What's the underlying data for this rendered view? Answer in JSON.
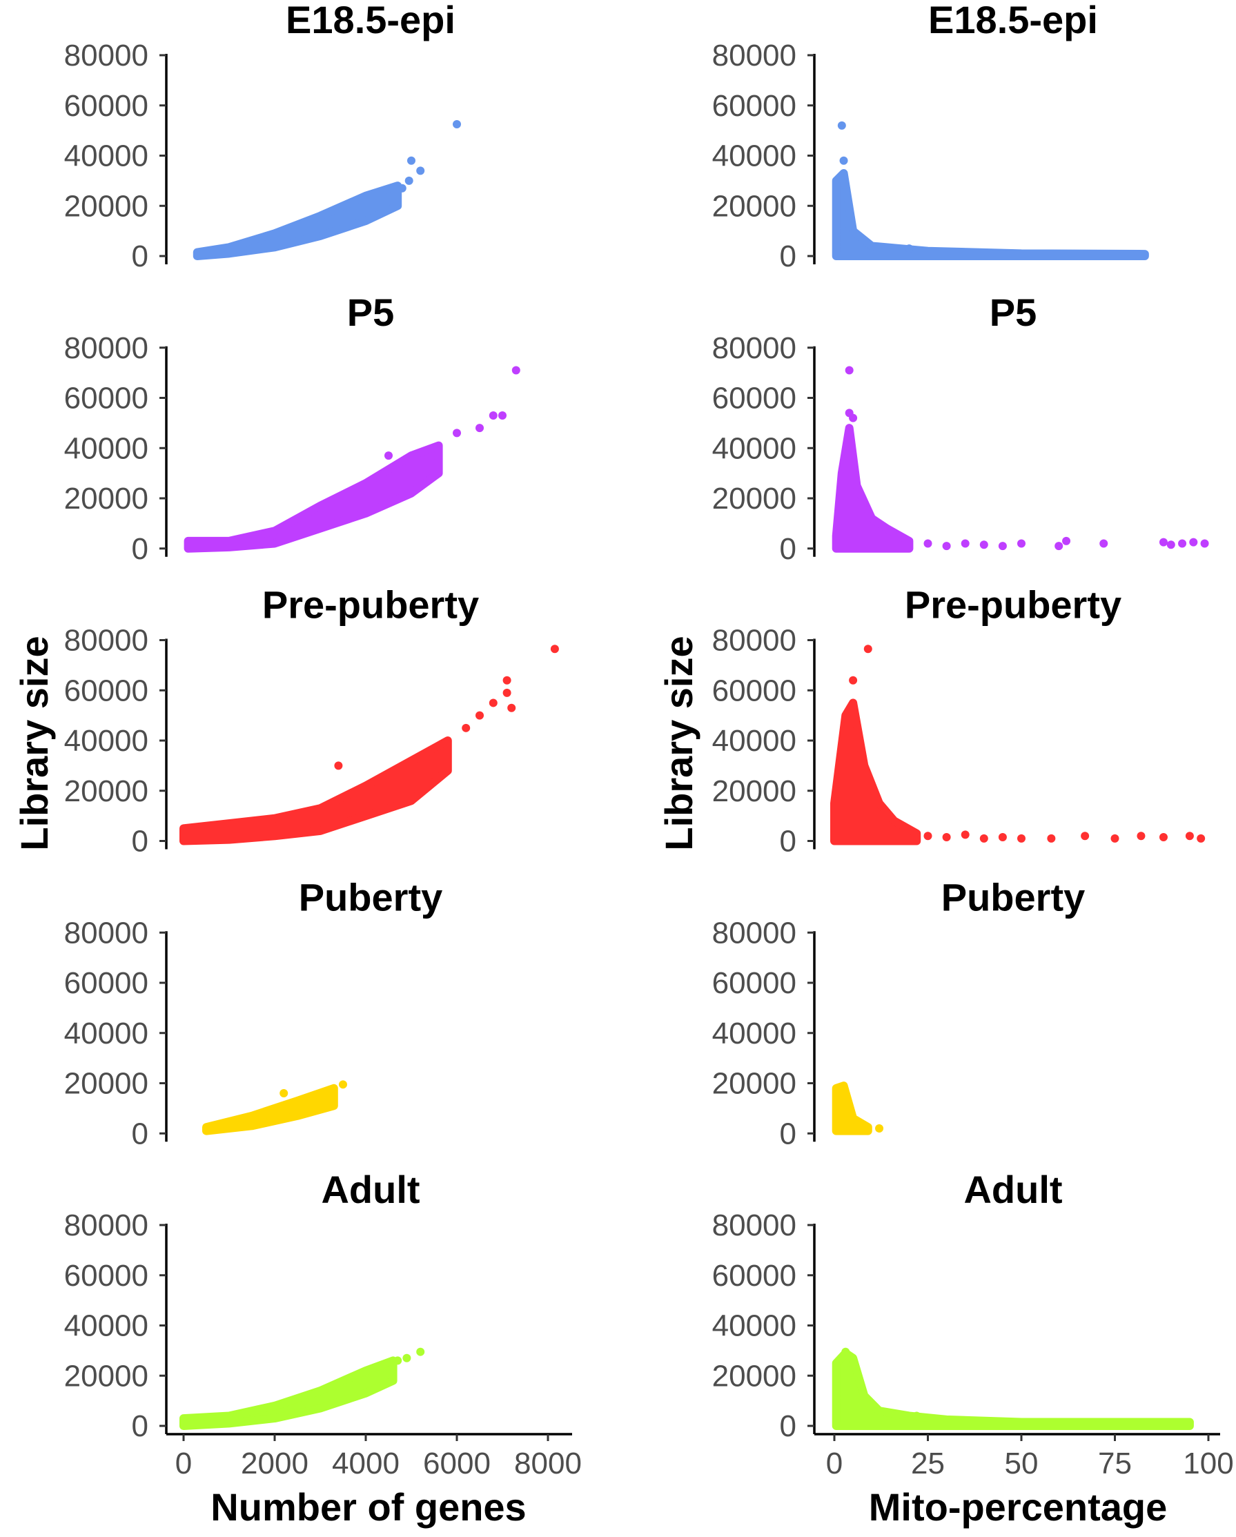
{
  "figure": {
    "xlabel_left": "Number of genes",
    "xlabel_right": "Mito-percentage",
    "ylabel_left": "Library size",
    "ylabel_right": "Library size"
  },
  "chart_data": [
    {
      "type": "scatter",
      "title": "E18.5-epi",
      "x_variable": "Number of genes",
      "color": "#6495ED",
      "xlim": [
        -380,
        8530
      ],
      "ylim": [
        0,
        80000
      ],
      "x_ticks": [
        "0",
        "2000",
        "4000",
        "6000",
        "8000"
      ],
      "y_ticks": [
        "0",
        "20000",
        "40000",
        "60000",
        "80000"
      ],
      "dense_region": [
        [
          300,
          0,
          1500
        ],
        [
          1000,
          1000,
          3500
        ],
        [
          2000,
          3500,
          9000
        ],
        [
          3000,
          8000,
          16000
        ],
        [
          4000,
          14000,
          24000
        ],
        [
          4700,
          20000,
          28000
        ]
      ],
      "points": [
        [
          4950,
          30000
        ],
        [
          5000,
          38000
        ],
        [
          5200,
          34000
        ],
        [
          4800,
          27000
        ],
        [
          6000,
          52500
        ]
      ]
    },
    {
      "type": "scatter",
      "title": "E18.5-epi",
      "x_variable": "Mito-percentage",
      "color": "#6495ED",
      "xlim": [
        -5.35,
        103.1
      ],
      "ylim": [
        0,
        80000
      ],
      "x_ticks": [
        "0",
        "25",
        "50",
        "75",
        "100"
      ],
      "y_ticks": [
        "0",
        "20000",
        "40000",
        "60000",
        "80000"
      ],
      "dense_region": [
        [
          0.5,
          0,
          30000
        ],
        [
          2.5,
          0,
          33000
        ],
        [
          5,
          0,
          10000
        ],
        [
          10,
          0,
          4000
        ],
        [
          25,
          0,
          2000
        ],
        [
          50,
          0,
          1000
        ],
        [
          83,
          0,
          800
        ]
      ],
      "points": [
        [
          2,
          52000
        ],
        [
          2.5,
          38000
        ],
        [
          4,
          12000
        ],
        [
          20,
          3000
        ]
      ]
    },
    {
      "type": "scatter",
      "title": "P5",
      "x_variable": "Number of genes",
      "color": "#BF3EFF",
      "xlim": [
        -380,
        8530
      ],
      "ylim": [
        0,
        80000
      ],
      "x_ticks": [
        "0",
        "2000",
        "4000",
        "6000",
        "8000"
      ],
      "y_ticks": [
        "0",
        "20000",
        "40000",
        "60000",
        "80000"
      ],
      "dense_region": [
        [
          100,
          0,
          3000
        ],
        [
          1000,
          500,
          3000
        ],
        [
          2000,
          2000,
          7000
        ],
        [
          3000,
          8000,
          17000
        ],
        [
          4000,
          14000,
          26000
        ],
        [
          5000,
          22000,
          37000
        ],
        [
          5600,
          30000,
          41000
        ]
      ],
      "points": [
        [
          4500,
          37000
        ],
        [
          6000,
          46000
        ],
        [
          6500,
          48000
        ],
        [
          6800,
          53000
        ],
        [
          7000,
          53000
        ],
        [
          7300,
          71000
        ]
      ]
    },
    {
      "type": "scatter",
      "title": "P5",
      "x_variable": "Mito-percentage",
      "color": "#BF3EFF",
      "xlim": [
        -5.35,
        103.1
      ],
      "ylim": [
        0,
        80000
      ],
      "x_ticks": [
        "0",
        "25",
        "50",
        "75",
        "100"
      ],
      "y_ticks": [
        "0",
        "20000",
        "40000",
        "60000",
        "80000"
      ],
      "dense_region": [
        [
          0.5,
          0,
          5000
        ],
        [
          2,
          0,
          30000
        ],
        [
          4,
          0,
          48000
        ],
        [
          6,
          0,
          25000
        ],
        [
          10,
          0,
          12000
        ],
        [
          14,
          0,
          8000
        ],
        [
          20,
          0,
          3000
        ]
      ],
      "points": [
        [
          4,
          71000
        ],
        [
          4,
          54000
        ],
        [
          5,
          52000
        ],
        [
          25,
          2000
        ],
        [
          30,
          1000
        ],
        [
          35,
          2000
        ],
        [
          40,
          1500
        ],
        [
          45,
          1000
        ],
        [
          50,
          2000
        ],
        [
          60,
          1000
        ],
        [
          62,
          3000
        ],
        [
          72,
          2000
        ],
        [
          88,
          2500
        ],
        [
          90,
          1500
        ],
        [
          93,
          2000
        ],
        [
          96,
          2500
        ],
        [
          99,
          2000
        ]
      ]
    },
    {
      "type": "scatter",
      "title": "Pre-puberty",
      "x_variable": "Number of genes",
      "color": "#FF3030",
      "xlim": [
        -380,
        8530
      ],
      "ylim": [
        0,
        80000
      ],
      "x_ticks": [
        "0",
        "2000",
        "4000",
        "6000",
        "8000"
      ],
      "y_ticks": [
        "0",
        "20000",
        "40000",
        "60000",
        "80000"
      ],
      "dense_region": [
        [
          0,
          0,
          5000
        ],
        [
          1000,
          500,
          7000
        ],
        [
          2000,
          2000,
          9000
        ],
        [
          3000,
          4000,
          13000
        ],
        [
          4000,
          10000,
          22000
        ],
        [
          5000,
          16000,
          32000
        ],
        [
          5800,
          28000,
          40000
        ]
      ],
      "points": [
        [
          3400,
          30000
        ],
        [
          6200,
          45000
        ],
        [
          6500,
          50000
        ],
        [
          6800,
          55000
        ],
        [
          7100,
          59000
        ],
        [
          7100,
          64000
        ],
        [
          7200,
          53000
        ],
        [
          8150,
          76500
        ]
      ]
    },
    {
      "type": "scatter",
      "title": "Pre-puberty",
      "x_variable": "Mito-percentage",
      "color": "#FF3030",
      "xlim": [
        -5.35,
        103.1
      ],
      "ylim": [
        0,
        80000
      ],
      "x_ticks": [
        "0",
        "25",
        "50",
        "75",
        "100"
      ],
      "y_ticks": [
        "0",
        "20000",
        "40000",
        "60000",
        "80000"
      ],
      "dense_region": [
        [
          0,
          0,
          15000
        ],
        [
          3,
          0,
          50000
        ],
        [
          5,
          0,
          55000
        ],
        [
          8,
          0,
          30000
        ],
        [
          12,
          0,
          15000
        ],
        [
          16,
          0,
          8000
        ],
        [
          22,
          0,
          3000
        ]
      ],
      "points": [
        [
          9,
          76500
        ],
        [
          5,
          64000
        ],
        [
          25,
          2000
        ],
        [
          30,
          1500
        ],
        [
          35,
          2500
        ],
        [
          40,
          1000
        ],
        [
          45,
          1500
        ],
        [
          50,
          1000
        ],
        [
          58,
          1000
        ],
        [
          67,
          2000
        ],
        [
          75,
          1000
        ],
        [
          82,
          2000
        ],
        [
          88,
          1500
        ],
        [
          95,
          2000
        ],
        [
          98,
          1000
        ]
      ]
    },
    {
      "type": "scatter",
      "title": "Puberty",
      "x_variable": "Number of genes",
      "color": "#FFD700",
      "xlim": [
        -380,
        8530
      ],
      "ylim": [
        0,
        80000
      ],
      "x_ticks": [
        "0",
        "2000",
        "4000",
        "6000",
        "8000"
      ],
      "y_ticks": [
        "0",
        "20000",
        "40000",
        "60000",
        "80000"
      ],
      "dense_region": [
        [
          500,
          1000,
          2500
        ],
        [
          1500,
          3000,
          7000
        ],
        [
          2500,
          7000,
          13000
        ],
        [
          3300,
          11000,
          18000
        ]
      ],
      "points": [
        [
          2200,
          16000
        ],
        [
          3500,
          19500
        ]
      ]
    },
    {
      "type": "scatter",
      "title": "Puberty",
      "x_variable": "Mito-percentage",
      "color": "#FFD700",
      "xlim": [
        -5.35,
        103.1
      ],
      "ylim": [
        0,
        80000
      ],
      "x_ticks": [
        "0",
        "25",
        "50",
        "75",
        "100"
      ],
      "y_ticks": [
        "0",
        "20000",
        "40000",
        "60000",
        "80000"
      ],
      "dense_region": [
        [
          0.5,
          1000,
          18000
        ],
        [
          2.5,
          1000,
          19000
        ],
        [
          5,
          1000,
          6000
        ],
        [
          9,
          1000,
          2500
        ]
      ],
      "points": [
        [
          12,
          2000
        ]
      ]
    },
    {
      "type": "scatter",
      "title": "Adult",
      "x_variable": "Number of genes",
      "color": "#ADFF2F",
      "xlim": [
        -380,
        8530
      ],
      "ylim": [
        0,
        80000
      ],
      "x_ticks": [
        "0",
        "2000",
        "4000",
        "6000",
        "8000"
      ],
      "y_ticks": [
        "0",
        "20000",
        "40000",
        "60000",
        "80000"
      ],
      "dense_region": [
        [
          0,
          0,
          3000
        ],
        [
          1000,
          1000,
          4000
        ],
        [
          2000,
          3000,
          8000
        ],
        [
          3000,
          7000,
          14000
        ],
        [
          4000,
          13000,
          22000
        ],
        [
          4600,
          18000,
          26000
        ]
      ],
      "points": [
        [
          4700,
          26000
        ],
        [
          4900,
          27000
        ],
        [
          5200,
          29500
        ]
      ]
    },
    {
      "type": "scatter",
      "title": "Adult",
      "x_variable": "Mito-percentage",
      "color": "#ADFF2F",
      "xlim": [
        -5.35,
        103.1
      ],
      "ylim": [
        0,
        80000
      ],
      "x_ticks": [
        "0",
        "25",
        "50",
        "75",
        "100"
      ],
      "y_ticks": [
        "0",
        "20000",
        "40000",
        "60000",
        "80000"
      ],
      "dense_region": [
        [
          0.5,
          0,
          25000
        ],
        [
          3,
          0,
          29000
        ],
        [
          5,
          0,
          27000
        ],
        [
          8,
          0,
          12000
        ],
        [
          12,
          0,
          6000
        ],
        [
          20,
          0,
          4000
        ],
        [
          30,
          0,
          2500
        ],
        [
          50,
          0,
          1500
        ],
        [
          70,
          0,
          1500
        ],
        [
          95,
          0,
          1500
        ]
      ],
      "points": [
        [
          3,
          29500
        ],
        [
          22,
          4000
        ]
      ]
    }
  ]
}
